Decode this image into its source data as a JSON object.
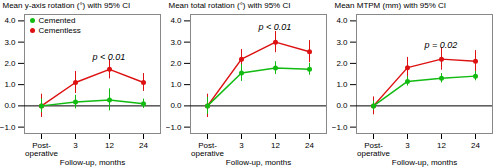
{
  "chart_data": [
    {
      "type": "line",
      "title": "Mean y-axis rotation (°) with 95% CI",
      "categories": [
        "Post-\noperative",
        "3",
        "12",
        "24"
      ],
      "xlabel": "Follow-up, months",
      "marker": "circle",
      "series": [
        {
          "name": "Cemented",
          "color": "#11bb11",
          "values": [
            0.0,
            0.18,
            0.28,
            0.1
          ],
          "errors": [
            0.32,
            0.32,
            0.52,
            0.22
          ]
        },
        {
          "name": "Cementless",
          "color": "#dd1111",
          "values": [
            0.0,
            1.1,
            1.72,
            1.1
          ],
          "errors": [
            0.55,
            0.52,
            0.45,
            0.42
          ]
        }
      ],
      "annotations": [
        {
          "text": "p < 0.01",
          "x": 1.5,
          "y": 2.15
        }
      ],
      "ylim": [
        -1.3,
        4.3
      ],
      "yticks": [
        -1,
        0,
        1,
        2,
        3,
        4
      ],
      "legend": "upper left"
    },
    {
      "type": "line",
      "title": "Mean total rotation (°) with 95% CI",
      "categories": [
        "Post-\noperative",
        "3",
        "12",
        "24"
      ],
      "xlabel": "Follow-up, months",
      "marker": "circle",
      "series": [
        {
          "name": "Cemented",
          "color": "#11bb11",
          "values": [
            0.0,
            1.55,
            1.78,
            1.72
          ],
          "errors": [
            0.4,
            0.4,
            0.3,
            0.28
          ]
        },
        {
          "name": "Cementless",
          "color": "#dd1111",
          "values": [
            0.0,
            2.2,
            3.0,
            2.55
          ],
          "errors": [
            0.55,
            0.45,
            0.5,
            0.52
          ]
        }
      ],
      "annotations": [
        {
          "text": "p < 0.01",
          "x": 1.5,
          "y": 3.55
        }
      ],
      "ylim": [
        -1.3,
        4.3
      ],
      "yticks": [
        -1,
        0,
        1,
        2,
        3,
        4
      ]
    },
    {
      "type": "line",
      "title": "Mean MTPM (mm) with 95% CI",
      "categories": [
        "Post-\noperative",
        "3",
        "12",
        "24"
      ],
      "xlabel": "Follow-up, months",
      "marker": "circle",
      "series": [
        {
          "name": "Cemented",
          "color": "#11bb11",
          "values": [
            0.0,
            1.15,
            1.3,
            1.4
          ],
          "errors": [
            0.22,
            0.22,
            0.22,
            0.22
          ]
        },
        {
          "name": "Cementless",
          "color": "#dd1111",
          "values": [
            0.0,
            1.8,
            2.2,
            2.1
          ],
          "errors": [
            0.42,
            0.48,
            0.52,
            0.5
          ]
        }
      ],
      "annotations": [
        {
          "text": "p = 0.02",
          "x": 1.5,
          "y": 2.72
        }
      ],
      "ylim": [
        -1.3,
        4.3
      ],
      "yticks": [
        -1,
        0,
        1,
        2,
        3,
        4
      ]
    }
  ]
}
